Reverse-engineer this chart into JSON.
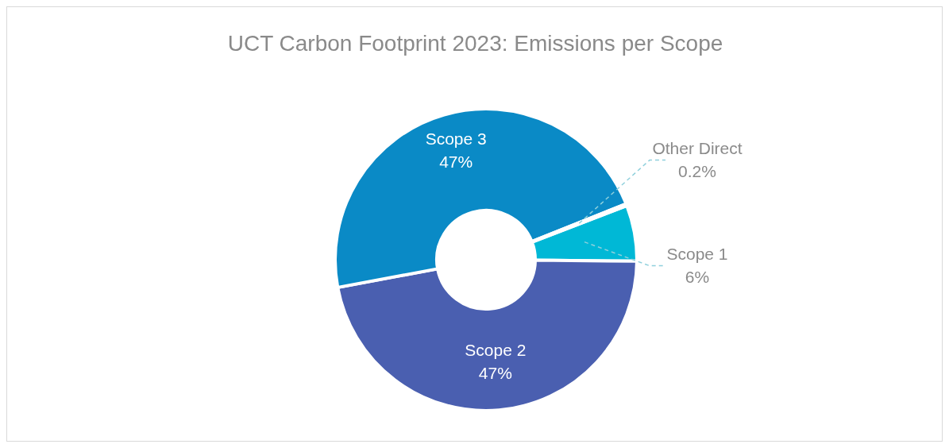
{
  "chart_data": {
    "type": "donut",
    "title": "UCT Carbon Footprint 2023: Emissions per Scope",
    "categories": [
      "Scope 1",
      "Scope 2",
      "Scope 3",
      "Other Direct"
    ],
    "values": [
      6,
      47,
      47,
      0.2
    ],
    "value_labels": [
      "6%",
      "47%",
      "47%",
      "0.2%"
    ],
    "colors": [
      "#00b8d6",
      "#4a5fb0",
      "#0a8ac6",
      "#00b0d2"
    ]
  }
}
